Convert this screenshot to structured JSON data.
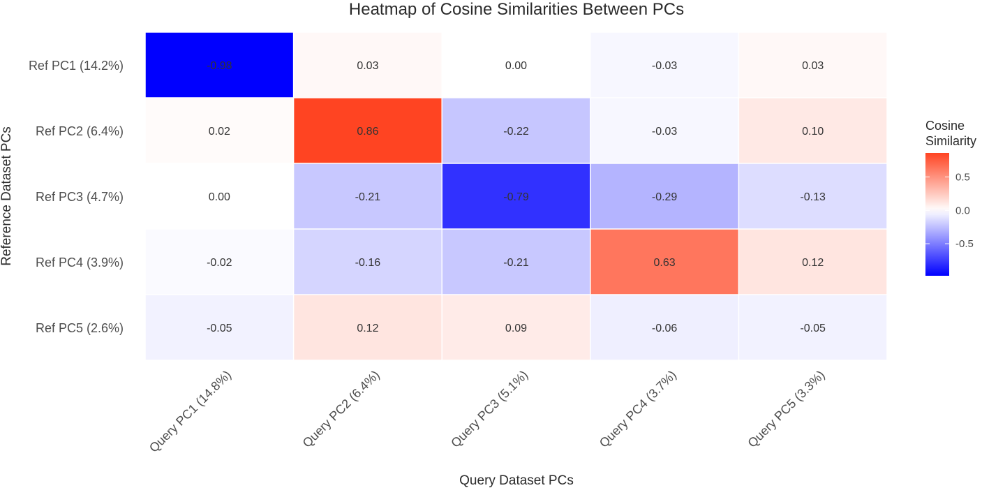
{
  "chart_data": {
    "type": "heatmap",
    "title": "Heatmap of Cosine Similarities Between PCs",
    "xlabel": "Query Dataset PCs",
    "ylabel": "Reference Dataset PCs",
    "x_categories": [
      "Query PC1 (14.8%)",
      "Query PC2 (6.4%)",
      "Query PC3 (5.1%)",
      "Query PC4 (3.7%)",
      "Query PC5 (3.3%)"
    ],
    "y_categories": [
      "Ref PC1 (14.2%)",
      "Ref PC2 (6.4%)",
      "Ref PC3 (4.7%)",
      "Ref PC4 (3.9%)",
      "Ref PC5 (2.6%)"
    ],
    "values": [
      [
        -0.98,
        0.03,
        0.0,
        -0.03,
        0.03
      ],
      [
        0.02,
        0.86,
        -0.22,
        -0.03,
        0.1
      ],
      [
        0.0,
        -0.21,
        -0.79,
        -0.29,
        -0.13
      ],
      [
        -0.02,
        -0.16,
        -0.21,
        0.63,
        0.12
      ],
      [
        -0.05,
        0.12,
        0.09,
        -0.06,
        -0.05
      ]
    ],
    "labels": [
      [
        "-0.98",
        "0.03",
        "0.00",
        "-0.03",
        "0.03"
      ],
      [
        "0.02",
        "0.86",
        "-0.22",
        "-0.03",
        "0.10"
      ],
      [
        "0.00",
        "-0.21",
        "-0.79",
        "-0.29",
        "-0.13"
      ],
      [
        "-0.02",
        "-0.16",
        "-0.21",
        "0.63",
        "0.12"
      ],
      [
        "-0.05",
        "0.12",
        "0.09",
        "-0.06",
        "-0.05"
      ]
    ],
    "legend": {
      "title": "Cosine\nSimilarity",
      "ticks": [
        "0.5",
        "0.0",
        "-0.5"
      ],
      "tick_values": [
        0.5,
        0.0,
        -0.5
      ],
      "range": [
        -0.98,
        0.86
      ],
      "placement": "right"
    },
    "colors": {
      "low": "#0000ff",
      "mid": "#ffffff",
      "high": "#ff4422"
    },
    "grid": false
  }
}
